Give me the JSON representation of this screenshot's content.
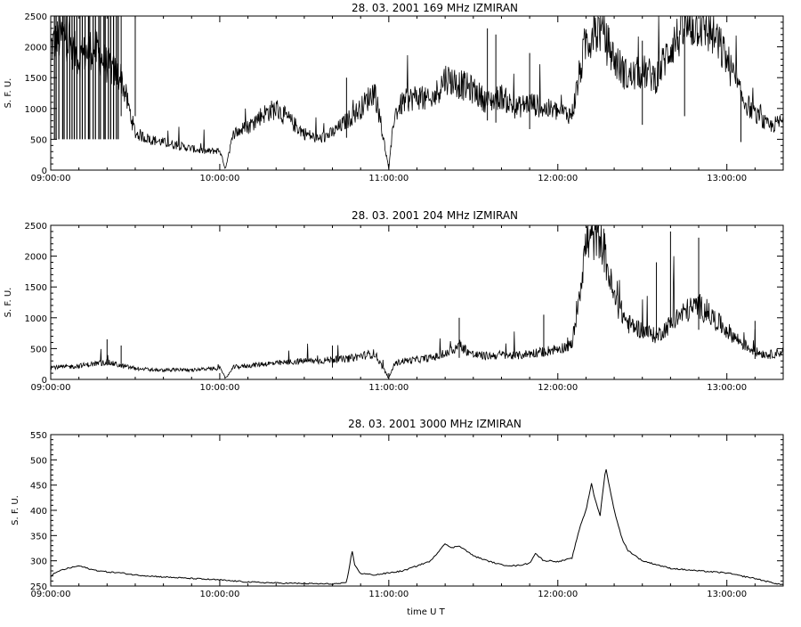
{
  "chart_data": [
    {
      "type": "line",
      "title": "28.  03.  2001    169 MHz     IZMIRAN",
      "ylabel": "S. F. U.",
      "xlabel": "",
      "xlim": [
        "09:00:00",
        "13:20:00"
      ],
      "ylim": [
        0,
        2500
      ],
      "yticks": [
        0,
        500,
        1000,
        1500,
        2000,
        2500
      ],
      "xticks": [
        "09:00:00",
        "10:00:00",
        "11:00:00",
        "12:00:00",
        "13:00:00"
      ],
      "grid": false,
      "series": [
        {
          "x": [
            "09:00:00",
            "09:05:00",
            "09:10:00",
            "09:15:00",
            "09:20:00",
            "09:25:00",
            "09:30:00",
            "09:35:00",
            "09:40:00",
            "09:45:00",
            "09:50:00",
            "09:55:00",
            "10:00:00",
            "10:02:00",
            "10:05:00",
            "10:10:00",
            "10:15:00",
            "10:20:00",
            "10:25:00",
            "10:30:00",
            "10:35:00",
            "10:40:00",
            "10:45:00",
            "10:50:00",
            "10:55:00",
            "11:00:00",
            "11:02:00",
            "11:05:00",
            "11:10:00",
            "11:15:00",
            "11:20:00",
            "11:25:00",
            "11:30:00",
            "11:35:00",
            "11:40:00",
            "11:45:00",
            "11:50:00",
            "11:55:00",
            "12:00:00",
            "12:05:00",
            "12:10:00",
            "12:15:00",
            "12:20:00",
            "12:25:00",
            "12:30:00",
            "12:35:00",
            "12:40:00",
            "12:45:00",
            "12:50:00",
            "12:55:00",
            "13:00:00",
            "13:05:00",
            "13:10:00",
            "13:15:00",
            "13:20:00"
          ],
          "y": [
            2000,
            2200,
            1800,
            2000,
            1700,
            1500,
            600,
            500,
            450,
            400,
            350,
            300,
            320,
            20,
            600,
            700,
            900,
            1000,
            800,
            600,
            500,
            600,
            800,
            1000,
            1300,
            20,
            900,
            1100,
            1200,
            1100,
            1500,
            1400,
            1300,
            1100,
            1200,
            1000,
            1100,
            1000,
            950,
            900,
            2100,
            2300,
            1800,
            1500,
            1600,
            1500,
            2000,
            2300,
            2400,
            2200,
            1800,
            1200,
            900,
            700,
            800
          ],
          "spikes": [
            {
              "x": "09:25:00",
              "y": 2500
            },
            {
              "x": "09:30:00",
              "y": 2500
            },
            {
              "x": "10:45:00",
              "y": 1500
            },
            {
              "x": "11:35:00",
              "y": 2300
            },
            {
              "x": "11:38:00",
              "y": 2200
            },
            {
              "x": "11:50:00",
              "y": 1900
            },
            {
              "x": "12:30:00",
              "y": 2100
            },
            {
              "x": "12:45:00",
              "y": 2500
            },
            {
              "x": "13:05:00",
              "y": 1300
            }
          ]
        }
      ]
    },
    {
      "type": "line",
      "title": "28.  03.  2001    204 MHz     IZMIRAN",
      "ylabel": "S. F. U.",
      "xlabel": "",
      "xlim": [
        "09:00:00",
        "13:20:00"
      ],
      "ylim": [
        0,
        2500
      ],
      "yticks": [
        0,
        500,
        1000,
        1500,
        2000,
        2500
      ],
      "xticks": [
        "09:00:00",
        "10:00:00",
        "11:00:00",
        "12:00:00",
        "13:00:00"
      ],
      "grid": false,
      "series": [
        {
          "x": [
            "09:00:00",
            "09:05:00",
            "09:10:00",
            "09:15:00",
            "09:20:00",
            "09:25:00",
            "09:30:00",
            "09:35:00",
            "09:40:00",
            "09:45:00",
            "09:50:00",
            "09:55:00",
            "10:00:00",
            "10:02:00",
            "10:05:00",
            "10:10:00",
            "10:15:00",
            "10:20:00",
            "10:25:00",
            "10:30:00",
            "10:35:00",
            "10:40:00",
            "10:45:00",
            "10:50:00",
            "10:55:00",
            "11:00:00",
            "11:02:00",
            "11:05:00",
            "11:10:00",
            "11:15:00",
            "11:20:00",
            "11:25:00",
            "11:30:00",
            "11:35:00",
            "11:40:00",
            "11:45:00",
            "11:50:00",
            "11:55:00",
            "12:00:00",
            "12:05:00",
            "12:10:00",
            "12:15:00",
            "12:20:00",
            "12:25:00",
            "12:30:00",
            "12:35:00",
            "12:40:00",
            "12:45:00",
            "12:50:00",
            "12:55:00",
            "13:00:00",
            "13:05:00",
            "13:10:00",
            "13:15:00",
            "13:20:00"
          ],
          "y": [
            200,
            200,
            220,
            250,
            280,
            220,
            180,
            160,
            150,
            160,
            150,
            170,
            180,
            20,
            200,
            220,
            250,
            260,
            280,
            300,
            300,
            320,
            330,
            380,
            420,
            20,
            250,
            300,
            320,
            350,
            400,
            550,
            400,
            380,
            400,
            380,
            420,
            450,
            500,
            550,
            2200,
            2400,
            1300,
            900,
            800,
            700,
            900,
            1100,
            1200,
            1000,
            800,
            600,
            450,
            400,
            450
          ],
          "spikes": [
            {
              "x": "09:20:00",
              "y": 650
            },
            {
              "x": "09:25:00",
              "y": 550
            },
            {
              "x": "10:40:00",
              "y": 550
            },
            {
              "x": "11:25:00",
              "y": 1000
            },
            {
              "x": "11:55:00",
              "y": 1050
            },
            {
              "x": "12:35:00",
              "y": 1900
            },
            {
              "x": "12:40:00",
              "y": 2400
            },
            {
              "x": "12:50:00",
              "y": 2300
            },
            {
              "x": "13:10:00",
              "y": 950
            }
          ]
        }
      ]
    },
    {
      "type": "line",
      "title": "28.  03.  2001    3000 MHz     IZMIRAN",
      "ylabel": "S. F. U.",
      "xlabel": "time  U T",
      "xlim": [
        "09:00:00",
        "13:20:00"
      ],
      "ylim": [
        250,
        550
      ],
      "yticks": [
        250,
        300,
        350,
        400,
        450,
        500,
        550
      ],
      "xticks": [
        "09:00:00",
        "10:00:00",
        "11:00:00",
        "12:00:00",
        "13:00:00"
      ],
      "grid": false,
      "series": [
        {
          "x": [
            "09:00:00",
            "09:03:00",
            "09:06:00",
            "09:10:00",
            "09:15:00",
            "09:20:00",
            "09:25:00",
            "09:30:00",
            "09:40:00",
            "09:50:00",
            "10:00:00",
            "10:10:00",
            "10:20:00",
            "10:30:00",
            "10:40:00",
            "10:45:00",
            "10:47:00",
            "10:48:00",
            "10:50:00",
            "10:55:00",
            "11:00:00",
            "11:05:00",
            "11:10:00",
            "11:15:00",
            "11:20:00",
            "11:22:00",
            "11:25:00",
            "11:30:00",
            "11:35:00",
            "11:40:00",
            "11:45:00",
            "11:50:00",
            "11:52:00",
            "11:55:00",
            "11:58:00",
            "12:00:00",
            "12:05:00",
            "12:08:00",
            "12:10:00",
            "12:12:00",
            "12:13:00",
            "12:15:00",
            "12:17:00",
            "12:20:00",
            "12:23:00",
            "12:25:00",
            "12:30:00",
            "12:40:00",
            "12:50:00",
            "13:00:00",
            "13:05:00",
            "13:10:00",
            "13:15:00",
            "13:20:00"
          ],
          "y": [
            270,
            280,
            285,
            290,
            282,
            278,
            276,
            272,
            268,
            265,
            262,
            258,
            256,
            255,
            254,
            256,
            320,
            290,
            275,
            272,
            276,
            280,
            290,
            300,
            335,
            325,
            330,
            310,
            300,
            292,
            290,
            295,
            315,
            300,
            300,
            298,
            305,
            370,
            400,
            455,
            425,
            390,
            485,
            400,
            340,
            320,
            300,
            285,
            280,
            276,
            270,
            265,
            258,
            252
          ]
        }
      ]
    }
  ]
}
